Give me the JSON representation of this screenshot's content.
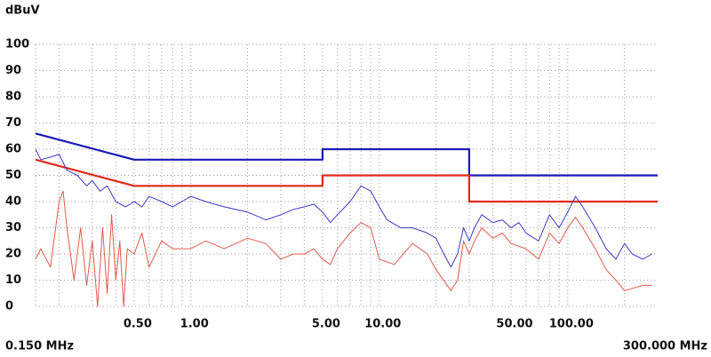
{
  "chart_data": {
    "type": "line",
    "ylabel": "dBuV",
    "xscale": "log",
    "xlim": [
      0.15,
      300
    ],
    "xlim_labels": [
      "0.150 MHz",
      "300.000 MHz"
    ],
    "ylim": [
      0,
      100
    ],
    "yticks": [
      0,
      10,
      20,
      30,
      40,
      50,
      60,
      70,
      80,
      90,
      100
    ],
    "xticks": [
      {
        "value": 0.5,
        "label": "0.50"
      },
      {
        "value": 1,
        "label": "1.00"
      },
      {
        "value": 5,
        "label": "5.00"
      },
      {
        "value": 10,
        "label": "10.00"
      },
      {
        "value": 50,
        "label": "50.00"
      },
      {
        "value": 100,
        "label": "100.00"
      }
    ],
    "xgrid": [
      0.2,
      0.3,
      0.4,
      0.5,
      0.6,
      0.7,
      0.8,
      0.9,
      1,
      2,
      3,
      4,
      5,
      6,
      7,
      8,
      9,
      10,
      20,
      30,
      40,
      50,
      60,
      70,
      80,
      90,
      100,
      200
    ],
    "grid": true,
    "series": [
      {
        "color": "#1a1ab8",
        "width": 2.2,
        "x": [
          0.15,
          0.5,
          5,
          5,
          30,
          30,
          300
        ],
        "values": [
          66,
          56,
          56,
          60,
          60,
          50,
          50
        ]
      },
      {
        "color": "#e02a1a",
        "width": 2.2,
        "x": [
          0.15,
          0.5,
          5,
          5,
          30,
          30,
          300
        ],
        "values": [
          56,
          46,
          46,
          50,
          50,
          40,
          40
        ]
      },
      {
        "color": "#3a3ac8",
        "width": 1,
        "x": [
          0.15,
          0.16,
          0.18,
          0.2,
          0.22,
          0.25,
          0.28,
          0.3,
          0.33,
          0.36,
          0.4,
          0.45,
          0.5,
          0.55,
          0.6,
          0.7,
          0.8,
          1.0,
          1.2,
          1.5,
          2.0,
          2.5,
          3.0,
          3.5,
          4.0,
          4.5,
          5.0,
          5.5,
          6.0,
          7.0,
          8.0,
          9.0,
          10,
          11,
          13,
          15,
          18,
          20,
          22,
          24,
          26,
          28,
          30,
          32,
          35,
          40,
          45,
          50,
          55,
          60,
          70,
          80,
          90,
          100,
          110,
          120,
          140,
          160,
          180,
          200,
          220,
          250,
          280
        ],
        "values": [
          60,
          56,
          57,
          58,
          52,
          50,
          46,
          48,
          44,
          46,
          40,
          38,
          40,
          38,
          42,
          40,
          38,
          42,
          40,
          38,
          36,
          33,
          35,
          37,
          38,
          39,
          36,
          32,
          35,
          40,
          46,
          44,
          38,
          33,
          30,
          30,
          28,
          26,
          20,
          15,
          20,
          30,
          25,
          30,
          35,
          32,
          33,
          30,
          32,
          28,
          25,
          35,
          30,
          36,
          42,
          38,
          30,
          22,
          18,
          24,
          20,
          18,
          20
        ]
      },
      {
        "color": "#e05a4a",
        "width": 1,
        "x": [
          0.15,
          0.16,
          0.18,
          0.2,
          0.21,
          0.22,
          0.24,
          0.26,
          0.28,
          0.3,
          0.32,
          0.34,
          0.36,
          0.38,
          0.4,
          0.42,
          0.44,
          0.46,
          0.5,
          0.55,
          0.6,
          0.7,
          0.8,
          1.0,
          1.2,
          1.5,
          2.0,
          2.5,
          3.0,
          3.5,
          4.0,
          4.5,
          5.0,
          5.5,
          6.0,
          7.0,
          8.0,
          9.0,
          10,
          12,
          15,
          18,
          20,
          24,
          26,
          28,
          30,
          32,
          35,
          40,
          45,
          50,
          60,
          70,
          80,
          90,
          100,
          110,
          120,
          140,
          160,
          180,
          200,
          250,
          280
        ],
        "values": [
          18,
          22,
          15,
          40,
          44,
          30,
          10,
          30,
          8,
          25,
          0,
          30,
          5,
          35,
          10,
          25,
          0,
          22,
          20,
          28,
          15,
          25,
          22,
          22,
          25,
          22,
          26,
          24,
          18,
          20,
          20,
          22,
          18,
          16,
          22,
          28,
          32,
          30,
          18,
          16,
          24,
          20,
          14,
          6,
          10,
          25,
          20,
          25,
          30,
          26,
          28,
          24,
          22,
          18,
          28,
          24,
          30,
          34,
          30,
          22,
          14,
          10,
          6,
          8,
          8
        ]
      }
    ]
  }
}
